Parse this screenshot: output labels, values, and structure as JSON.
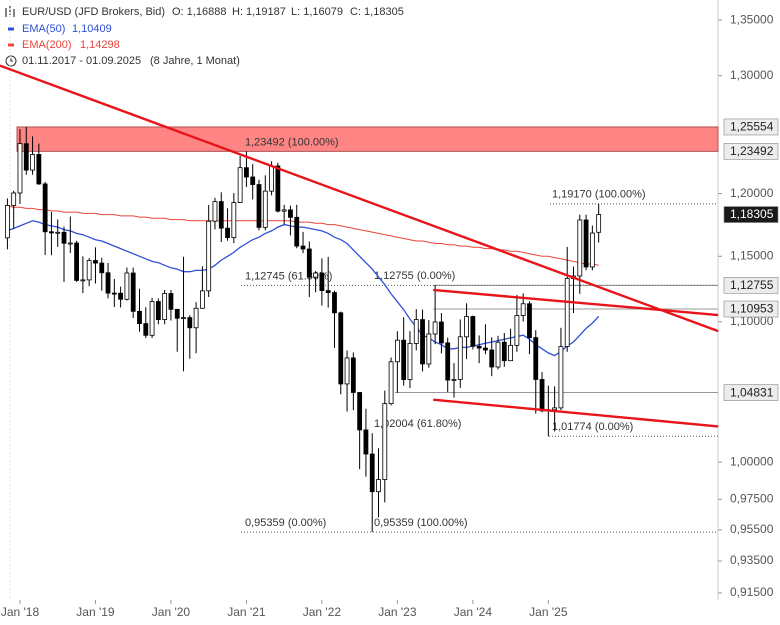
{
  "chart_data": {
    "type": "candlestick",
    "title": "EUR/USD (JFD Brokers, Bid)",
    "ohlc_labels": [
      "O: 1,16888",
      "H: 1,19187",
      "L: 1,16079",
      "C: 1,18305"
    ],
    "period": "01.11.2017 - 01.09.2025",
    "period_note": "(8 Jahre, 1 Monat)",
    "categories": [
      null,
      null,
      "Jan '18",
      null,
      null,
      null,
      null,
      null,
      null,
      null,
      null,
      null,
      null,
      null,
      "Jan '19",
      null,
      null,
      null,
      null,
      null,
      null,
      null,
      null,
      null,
      null,
      null,
      "Jan '20",
      null,
      null,
      null,
      null,
      null,
      null,
      null,
      null,
      null,
      null,
      null,
      "Jan '21",
      null,
      null,
      null,
      null,
      null,
      null,
      null,
      null,
      null,
      null,
      null,
      "Jan '22",
      null,
      null,
      null,
      null,
      null,
      null,
      null,
      null,
      null,
      null,
      null,
      "Jan '23",
      null,
      null,
      null,
      null,
      null,
      null,
      null,
      null,
      null,
      null,
      null,
      "Jan '24",
      null,
      null,
      null,
      null,
      null,
      null,
      null,
      null,
      null,
      null,
      null,
      "Jan '25",
      null,
      null,
      null,
      null,
      null,
      null,
      null,
      null
    ],
    "open": [
      1.1645,
      1.1904,
      1.2005,
      1.2414,
      1.2193,
      1.2323,
      1.2079,
      1.1693,
      1.1684,
      1.1689,
      1.1602,
      1.1604,
      1.1313,
      1.1317,
      1.1467,
      1.1447,
      1.1372,
      1.1216,
      1.1215,
      1.1169,
      1.137,
      1.1078,
      1.0986,
      1.0899,
      1.1152,
      1.1016,
      1.1213,
      1.1093,
      1.1026,
      1.1031,
      1.0955,
      1.1101,
      1.1233,
      1.1777,
      1.1935,
      1.1722,
      1.1647,
      1.1927,
      1.2213,
      1.2136,
      1.2074,
      1.1728,
      1.202,
      1.2227,
      1.1858,
      1.1868,
      1.1808,
      1.158,
      1.1557,
      1.1338,
      1.137,
      1.1235,
      1.122,
      1.1067,
      1.0545,
      1.0733,
      1.0484,
      1.0221,
      1.0055,
      0.9801,
      0.9882,
      1.0405,
      1.0705,
      1.0863,
      1.0576,
      1.0839,
      1.1016,
      1.0689,
      1.0909,
      1.0998,
      1.0843,
      1.0573,
      1.0577,
      1.0888,
      1.1039,
      1.0818,
      1.0805,
      1.0791,
      1.0667,
      1.0848,
      1.0713,
      1.0825,
      1.1047,
      1.1135,
      1.0882,
      1.0577,
      1.0354,
      1.0362,
      1.0375,
      1.0816,
      1.1328,
      1.1347,
      1.1787,
      1.1417,
      1.16888
    ],
    "high": [
      1.1961,
      1.2023,
      1.2537,
      1.2555,
      1.2476,
      1.2414,
      1.2096,
      1.1852,
      1.1791,
      1.1734,
      1.1815,
      1.1622,
      1.15,
      1.1486,
      1.157,
      1.1488,
      1.1448,
      1.1324,
      1.1265,
      1.1412,
      1.1412,
      1.1249,
      1.1109,
      1.1179,
      1.1175,
      1.1239,
      1.1239,
      1.1095,
      1.1496,
      1.1049,
      1.1147,
      1.1422,
      1.1908,
      1.1966,
      1.2011,
      1.1881,
      1.2004,
      1.231,
      1.2349,
      1.2243,
      1.2113,
      1.215,
      1.2266,
      1.2254,
      1.1909,
      1.1902,
      1.1909,
      1.1692,
      1.1616,
      1.1385,
      1.1483,
      1.1495,
      1.1234,
      1.1076,
      1.0787,
      1.0773,
      1.0486,
      1.0369,
      1.0198,
      1.0094,
      1.0497,
      1.0736,
      1.0929,
      1.1033,
      1.093,
      1.1095,
      1.1092,
      1.1012,
      1.1276,
      1.1065,
      1.0882,
      1.0695,
      1.1017,
      1.1139,
      1.1046,
      1.0898,
      1.0981,
      1.0885,
      1.0895,
      1.0916,
      1.0948,
      1.1202,
      1.1214,
      1.1153,
      1.0937,
      1.063,
      1.0533,
      1.0528,
      1.0955,
      1.1573,
      1.1419,
      1.183,
      1.1829,
      1.1743,
      1.19187
    ],
    "low": [
      1.1554,
      1.1718,
      1.1916,
      1.2154,
      1.2155,
      1.2071,
      1.151,
      1.1508,
      1.1574,
      1.1301,
      1.1526,
      1.1302,
      1.1216,
      1.1269,
      1.1289,
      1.1234,
      1.1176,
      1.1111,
      1.1107,
      1.116,
      1.1028,
      1.0926,
      1.0879,
      1.0879,
      1.0981,
      1.0981,
      1.1009,
      1.0778,
      1.0636,
      1.0727,
      1.0767,
      1.1098,
      1.1186,
      1.1712,
      1.1612,
      1.1622,
      1.1603,
      1.1924,
      1.2054,
      1.1952,
      1.1704,
      1.1704,
      1.1986,
      1.1848,
      1.1752,
      1.1664,
      1.1563,
      1.1524,
      1.1186,
      1.1222,
      1.1121,
      1.1106,
      1.0806,
      1.0471,
      1.0349,
      1.0359,
      0.9952,
      0.9901,
      0.9536,
      0.9632,
      0.973,
      1.0393,
      1.0483,
      1.0533,
      1.0516,
      1.0788,
      1.0635,
      1.0662,
      1.0834,
      1.0766,
      1.0488,
      1.0448,
      1.0517,
      1.0724,
      1.0795,
      1.0695,
      1.0761,
      1.0601,
      1.065,
      1.0668,
      1.071,
      1.0778,
      1.1002,
      1.0761,
      1.0335,
      1.0344,
      1.0177,
      1.021,
      1.036,
      1.0778,
      1.1065,
      1.121,
      1.1391,
      1.1391,
      1.16079
    ],
    "close": [
      1.1904,
      1.2005,
      1.2414,
      1.2193,
      1.2323,
      1.2079,
      1.1693,
      1.1684,
      1.1689,
      1.1602,
      1.1604,
      1.1313,
      1.1317,
      1.1467,
      1.1447,
      1.1372,
      1.1216,
      1.1215,
      1.1169,
      1.137,
      1.1078,
      1.0986,
      1.0899,
      1.1152,
      1.1016,
      1.1213,
      1.1093,
      1.1026,
      1.1031,
      1.0955,
      1.1101,
      1.1233,
      1.1777,
      1.1935,
      1.1722,
      1.1647,
      1.1927,
      1.2213,
      1.2136,
      1.2074,
      1.1728,
      1.202,
      1.2227,
      1.1858,
      1.1868,
      1.1808,
      1.158,
      1.1557,
      1.1338,
      1.137,
      1.1235,
      1.122,
      1.1067,
      1.0545,
      1.0733,
      1.0484,
      1.0221,
      1.0055,
      0.9801,
      0.9882,
      1.0405,
      1.0705,
      1.0863,
      1.0576,
      1.0839,
      1.1016,
      1.0689,
      1.0909,
      1.0998,
      1.0843,
      1.0573,
      1.0577,
      1.0888,
      1.1039,
      1.0818,
      1.0805,
      1.0791,
      1.0667,
      1.0848,
      1.0713,
      1.0825,
      1.1047,
      1.1135,
      1.0882,
      1.0577,
      1.0354,
      1.0362,
      1.0375,
      1.0816,
      1.1328,
      1.1347,
      1.1787,
      1.1417,
      1.1683,
      1.18305
    ],
    "up_color": "#ffffff",
    "down_color": "#000000",
    "log_scale": true,
    "ylim": [
      0.9106,
      1.3686
    ],
    "yticks": [
      {
        "value": 1.35,
        "label": "1,35000"
      },
      {
        "value": 1.3,
        "label": "1,30000"
      },
      {
        "value": 1.2,
        "label": "1,20000"
      },
      {
        "value": 1.15,
        "label": "1,15000"
      },
      {
        "value": 1.1,
        "label": "1,10000"
      },
      {
        "value": 1.0,
        "label": "1,00000"
      },
      {
        "value": 0.975,
        "label": "0,97500"
      },
      {
        "value": 0.955,
        "label": "0,95500"
      },
      {
        "value": 0.935,
        "label": "0,93500"
      },
      {
        "value": 0.915,
        "label": "0,91500"
      }
    ],
    "series": [
      {
        "name": "EMA(50)",
        "color": "#2f4fd6",
        "legend_value": "1,10409",
        "values": [
          1.17,
          1.172,
          1.174,
          1.176,
          1.178,
          1.177,
          1.175,
          1.174,
          1.173,
          1.171,
          1.17,
          1.168,
          1.167,
          1.165,
          1.163,
          1.162,
          1.16,
          1.158,
          1.156,
          1.154,
          1.152,
          1.15,
          1.148,
          1.146,
          1.145,
          1.143,
          1.141,
          1.14,
          1.138,
          1.138,
          1.139,
          1.139,
          1.14,
          1.143,
          1.147,
          1.15,
          1.153,
          1.157,
          1.16,
          1.163,
          1.165,
          1.168,
          1.17,
          1.173,
          1.175,
          1.174,
          1.173,
          1.173,
          1.172,
          1.171,
          1.17,
          1.168,
          1.165,
          1.163,
          1.16,
          1.155,
          1.15,
          1.145,
          1.14,
          1.134,
          1.128,
          1.121,
          1.115,
          1.109,
          1.102,
          1.096,
          1.09,
          1.088,
          1.085,
          1.083,
          1.08,
          1.08,
          1.081,
          1.081,
          1.082,
          1.083,
          1.084,
          1.085,
          1.086,
          1.087,
          1.088,
          1.089,
          1.09,
          1.087,
          1.083,
          1.08,
          1.077,
          1.075,
          1.078,
          1.082,
          1.085,
          1.09,
          1.095,
          1.099,
          1.10409
        ]
      },
      {
        "name": "EMA(200)",
        "color": "#e8453c",
        "legend_value": "1,14298",
        "values": [
          1.19,
          1.189,
          1.189,
          1.188,
          1.188,
          1.187,
          1.187,
          1.186,
          1.186,
          1.185,
          1.185,
          1.185,
          1.184,
          1.184,
          1.184,
          1.183,
          1.183,
          1.183,
          1.182,
          1.182,
          1.182,
          1.181,
          1.181,
          1.18,
          1.18,
          1.18,
          1.179,
          1.179,
          1.179,
          1.178,
          1.178,
          1.178,
          1.178,
          1.178,
          1.178,
          1.178,
          1.178,
          1.178,
          1.178,
          1.178,
          1.178,
          1.178,
          1.178,
          1.178,
          1.178,
          1.178,
          1.177,
          1.177,
          1.177,
          1.176,
          1.176,
          1.175,
          1.175,
          1.174,
          1.173,
          1.172,
          1.171,
          1.17,
          1.169,
          1.168,
          1.167,
          1.166,
          1.165,
          1.164,
          1.163,
          1.162,
          1.162,
          1.161,
          1.16,
          1.16,
          1.159,
          1.159,
          1.158,
          1.158,
          1.157,
          1.157,
          1.156,
          1.156,
          1.155,
          1.155,
          1.154,
          1.154,
          1.153,
          1.152,
          1.151,
          1.15,
          1.15,
          1.149,
          1.148,
          1.147,
          1.146,
          1.145,
          1.144,
          1.144,
          1.14298
        ]
      }
    ],
    "zone": {
      "range": [
        1.23492,
        1.25554
      ],
      "color": "#ff8585"
    },
    "trendlines": [
      {
        "x": [
          -1.2,
          113
        ],
        "values": [
          1.309,
          1.093
        ],
        "color": "#e8141a"
      },
      {
        "x": [
          67.7,
          113
        ],
        "values": [
          1.124,
          1.105
        ],
        "color": "#e8141a"
      },
      {
        "x": [
          67.7,
          113
        ],
        "values": [
          1.0433,
          1.0245
        ],
        "color": "#e8141a"
      }
    ],
    "levels": [
      {
        "value": 1.23492,
        "label": "1,23492 (100.00%)"
      },
      {
        "value": 1.1917,
        "label": "1,19170 (100.00%)"
      },
      {
        "value": 1.12745,
        "label": "1,12745 (61.80%)"
      },
      {
        "value": 1.12755,
        "label": "1,12755 (0.00%)"
      },
      {
        "value": 1.02004,
        "label": "1,02004 (61.80%)"
      },
      {
        "value": 1.01774,
        "label": "1,01774 (0.00%)"
      },
      {
        "value": 0.95359,
        "label": "0,95359 (0.00%)"
      },
      {
        "value": 0.95359,
        "label": "0,95359 (100.00%)"
      }
    ],
    "price_labels": [
      {
        "value": 1.25554,
        "label": "1,25554"
      },
      {
        "value": 1.23492,
        "label": "1,23492"
      },
      {
        "value": 1.18305,
        "label": "1,18305",
        "highlight": true
      },
      {
        "value": 1.12755,
        "label": "1,12755"
      },
      {
        "value": 1.10953,
        "label": "1,10953"
      },
      {
        "value": 1.04831,
        "label": "1,04831"
      }
    ]
  }
}
